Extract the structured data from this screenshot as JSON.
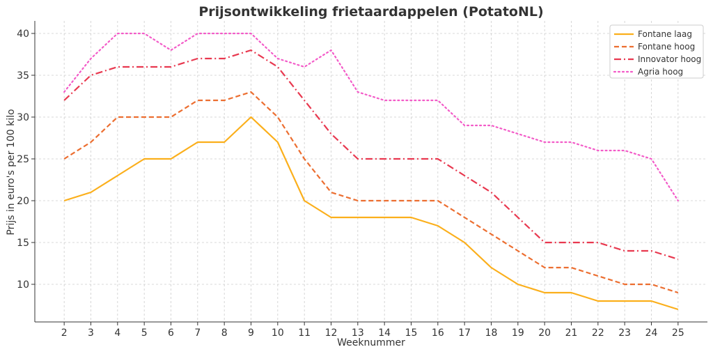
{
  "chart_data": {
    "type": "line",
    "title": "Prijsontwikkeling frietaardappelen (PotatoNL)",
    "xlabel": "Weeknummer",
    "ylabel": "Prijs in euro's per 100 kilo",
    "x": [
      2,
      3,
      4,
      5,
      6,
      7,
      8,
      9,
      10,
      11,
      12,
      13,
      14,
      15,
      16,
      17,
      18,
      19,
      20,
      21,
      22,
      23,
      24,
      25
    ],
    "xlim": [
      0.9,
      26.1
    ],
    "ylim": [
      5.5,
      41.5
    ],
    "yticks": [
      10,
      15,
      20,
      25,
      30,
      35,
      40
    ],
    "grid": true,
    "legend_position": "top-right",
    "series": [
      {
        "name": "Fontane laag",
        "color": "#FBAF1B",
        "style": "solid",
        "values": [
          20,
          21,
          23,
          25,
          25,
          27,
          27,
          30,
          27,
          20,
          18,
          18,
          18,
          18,
          17,
          15,
          12,
          10,
          9,
          9,
          8,
          8,
          8,
          7
        ]
      },
      {
        "name": "Fontane hoog",
        "color": "#EC6E30",
        "style": "dashed",
        "values": [
          25,
          27,
          30,
          30,
          30,
          32,
          32,
          33,
          30,
          25,
          21,
          20,
          20,
          20,
          20,
          18,
          16,
          14,
          12,
          12,
          11,
          10,
          10,
          9
        ]
      },
      {
        "name": "Innovator hoog",
        "color": "#E8384F",
        "style": "dashdot",
        "values": [
          32,
          35,
          36,
          36,
          36,
          37,
          37,
          38,
          36,
          32,
          28,
          25,
          25,
          25,
          25,
          23,
          21,
          18,
          15,
          15,
          15,
          14,
          14,
          13
        ]
      },
      {
        "name": "Agria hoog",
        "color": "#F35BC8",
        "style": "dotted",
        "values": [
          33,
          37,
          40,
          40,
          38,
          40,
          40,
          40,
          37,
          36,
          38,
          33,
          32,
          32,
          32,
          29,
          29,
          28,
          27,
          27,
          26,
          26,
          25,
          20
        ]
      }
    ]
  }
}
